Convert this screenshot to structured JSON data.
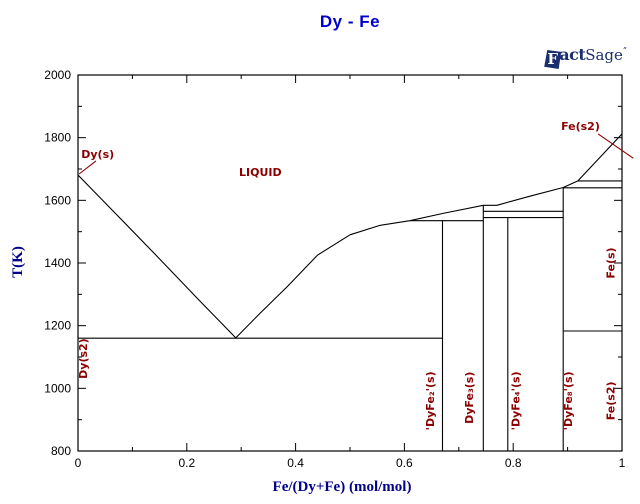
{
  "title": "Dy - Fe",
  "logo": {
    "f": "F",
    "act": "act",
    "sage": "Sage",
    "tm": "”"
  },
  "chart_data": {
    "type": "line",
    "subtype": "binary-phase-diagram",
    "title": "Dy - Fe",
    "xlabel": "Fe/(Dy+Fe) (mol/mol)",
    "ylabel": "T(K)",
    "xlim": [
      0,
      1
    ],
    "ylim": [
      800,
      2000
    ],
    "grid": false,
    "legend": "none",
    "colors": {
      "line": "#000000",
      "phase": "#8b0000",
      "axis_title": "#00008b",
      "title": "#0000cc"
    },
    "xticks": {
      "values": [
        0,
        0.2,
        0.4,
        0.6,
        0.8,
        1
      ],
      "labels": [
        "0",
        "0.2",
        "0.4",
        "0.6",
        "0.8",
        "1"
      ],
      "minor": [
        0.1,
        0.3,
        0.5,
        0.7,
        0.9
      ]
    },
    "yticks": {
      "values": [
        800,
        1000,
        1200,
        1400,
        1600,
        1800,
        2000
      ],
      "labels": [
        "800",
        "1000",
        "1200",
        "1400",
        "1600",
        "1800",
        "2000"
      ],
      "minor": [
        900,
        1100,
        1300,
        1500,
        1700,
        1900
      ]
    },
    "key_points": {
      "Dy_melting_K": 1681,
      "eutectic": {
        "x": 0.29,
        "T": 1160
      },
      "DyFe2_peritectic_K": 1535,
      "DyFe3_congruent_K": 1584,
      "invariant_upper_K": 1565,
      "invariant_lower_K": 1545,
      "DyFe8_peritectic_K": 1640,
      "Fe_fcc_bcc_K": 1662,
      "Fe_bcc_fcc_K": 1183,
      "Fe_melting_K": 1812,
      "compounds": [
        {
          "name": "'DyFe2'(s)",
          "x": 0.67
        },
        {
          "name": "DyFe3(s)",
          "x": 0.745
        },
        {
          "name": "'DyFe4'(s)",
          "x": 0.79
        },
        {
          "name": "'DyFe8'(s)",
          "x": 0.892
        }
      ]
    },
    "boundaries": [
      {
        "name": "liquidus",
        "points": [
          [
            0,
            1681
          ],
          [
            0.07,
            1556
          ],
          [
            0.145,
            1422
          ],
          [
            0.22,
            1286
          ],
          [
            0.29,
            1161
          ],
          [
            0.335,
            1240
          ],
          [
            0.385,
            1325
          ],
          [
            0.44,
            1425
          ],
          [
            0.5,
            1490
          ],
          [
            0.555,
            1520
          ],
          [
            0.61,
            1535
          ],
          [
            0.67,
            1558
          ],
          [
            0.745,
            1584
          ],
          [
            0.77,
            1584
          ],
          [
            0.83,
            1613
          ],
          [
            0.892,
            1641
          ],
          [
            0.919,
            1662
          ],
          [
            1.0,
            1812
          ]
        ]
      },
      {
        "name": "eutectic-line-1160",
        "points": [
          [
            0,
            1160
          ],
          [
            0.67,
            1160
          ]
        ]
      },
      {
        "name": "dyfe2-vertical",
        "points": [
          [
            0.67,
            1535
          ],
          [
            0.67,
            800
          ]
        ]
      },
      {
        "name": "dyfe3-vertical",
        "points": [
          [
            0.745,
            1584
          ],
          [
            0.745,
            800
          ]
        ]
      },
      {
        "name": "dyfe4-vertical",
        "points": [
          [
            0.79,
            1545
          ],
          [
            0.79,
            800
          ]
        ]
      },
      {
        "name": "dyfe8-vertical",
        "points": [
          [
            0.892,
            1640
          ],
          [
            0.892,
            800
          ]
        ]
      },
      {
        "name": "dyfe2-peritectic-1535",
        "points": [
          [
            0.61,
            1535
          ],
          [
            0.745,
            1535
          ]
        ]
      },
      {
        "name": "invariant-1565",
        "points": [
          [
            0.745,
            1565
          ],
          [
            0.892,
            1565
          ]
        ]
      },
      {
        "name": "invariant-1545",
        "points": [
          [
            0.745,
            1545
          ],
          [
            0.892,
            1545
          ]
        ]
      },
      {
        "name": "dyfe8-peritectic-1640",
        "points": [
          [
            0.892,
            1640
          ],
          [
            1.0,
            1640
          ]
        ]
      },
      {
        "name": "fe-fcc-bcc-1662",
        "points": [
          [
            0.919,
            1662
          ],
          [
            1.0,
            1662
          ]
        ]
      },
      {
        "name": "fe-bcc-fcc-1183",
        "points": [
          [
            0.892,
            1183
          ],
          [
            1.0,
            1183
          ]
        ]
      }
    ],
    "leader_lines": [
      {
        "name": "dy-s-leader",
        "points": [
          [
            0.033,
            1726
          ],
          [
            0.002,
            1684
          ]
        ]
      },
      {
        "name": "fe-s2-leader",
        "points": [
          [
            0.956,
            1812
          ],
          [
            1.021,
            1734
          ]
        ]
      }
    ],
    "region_labels": [
      {
        "name": "label-dy-s",
        "text": "Dy(s)",
        "x": 0.006,
        "T": 1735,
        "rotate": false,
        "anchor": "start"
      },
      {
        "name": "label-liquid",
        "text": "LIQUID",
        "x": 0.296,
        "T": 1677,
        "rotate": false,
        "anchor": "start"
      },
      {
        "name": "label-fe-s2-top",
        "text": "Fe(s2)",
        "x": 0.888,
        "T": 1824,
        "rotate": false,
        "anchor": "start"
      },
      {
        "name": "label-dy-s2",
        "text": "Dy(s2)",
        "x": 0.017,
        "T": 1095,
        "rotate": true
      },
      {
        "name": "label-dyfe2",
        "text": "'DyFe₂'(s)",
        "x": 0.654,
        "T": 960,
        "rotate": true
      },
      {
        "name": "label-dyfe3",
        "text": "DyFe₃(s)",
        "x": 0.726,
        "T": 970,
        "rotate": true
      },
      {
        "name": "label-dyfe4",
        "text": "'DyFe₄'(s)",
        "x": 0.812,
        "T": 960,
        "rotate": true
      },
      {
        "name": "label-dyfe8",
        "text": "'DyFe₈'(s)",
        "x": 0.908,
        "T": 960,
        "rotate": true
      },
      {
        "name": "label-fe-s",
        "text": "Fe(s)",
        "x": 0.986,
        "T": 1400,
        "rotate": true
      },
      {
        "name": "label-fe-s2-bottom",
        "text": "Fe(s2)",
        "x": 0.986,
        "T": 960,
        "rotate": true
      }
    ]
  }
}
